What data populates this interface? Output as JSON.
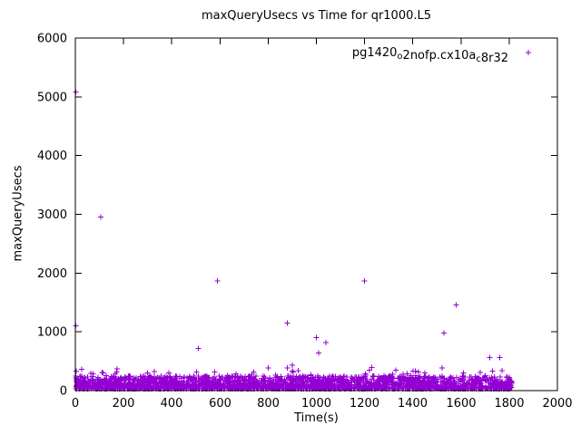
{
  "chart_data": {
    "type": "scatter",
    "title": "maxQueryUsecs vs Time for qr1000.L5",
    "xlabel": "Time(s)",
    "ylabel": "maxQueryUsecs",
    "xlim": [
      0,
      2000
    ],
    "ylim": [
      0,
      6000
    ],
    "xticks": [
      0,
      200,
      400,
      600,
      800,
      1000,
      1200,
      1400,
      1600,
      1800,
      2000
    ],
    "yticks": [
      0,
      1000,
      2000,
      3000,
      4000,
      5000,
      6000
    ],
    "grid": false,
    "legend_position": "top-right-inside",
    "marker": "plus",
    "marker_color": "#9400d3",
    "axis_color": "#000000",
    "series_label_parts": [
      {
        "text": "pg1420"
      },
      {
        "sub": "o"
      },
      {
        "text": "2nofp.cx10a"
      },
      {
        "sub": "c"
      },
      {
        "text": "8r32"
      }
    ],
    "outliers": [
      [
        2,
        5080
      ],
      [
        2,
        1100
      ],
      [
        3,
        330
      ],
      [
        105,
        2950
      ],
      [
        115,
        300
      ],
      [
        300,
        300
      ],
      [
        510,
        720
      ],
      [
        590,
        1870
      ],
      [
        830,
        260
      ],
      [
        880,
        1150
      ],
      [
        900,
        430
      ],
      [
        1000,
        900
      ],
      [
        1010,
        640
      ],
      [
        1040,
        820
      ],
      [
        1200,
        1870
      ],
      [
        1230,
        390
      ],
      [
        1410,
        330
      ],
      [
        1450,
        300
      ],
      [
        1530,
        980
      ],
      [
        1580,
        1460
      ],
      [
        1610,
        300
      ],
      [
        1720,
        560
      ],
      [
        1730,
        330
      ],
      [
        1760,
        560
      ],
      [
        1770,
        340
      ],
      [
        1790,
        230
      ]
    ],
    "dense_band": {
      "description": "dense noise band of samples along the bottom of the plot",
      "x_min": 0,
      "x_max": 1810,
      "y_min": 30,
      "y_range": 220,
      "spike_prob": 0.08,
      "spike_extra": 180,
      "count": 2600,
      "seed": 1337
    }
  }
}
